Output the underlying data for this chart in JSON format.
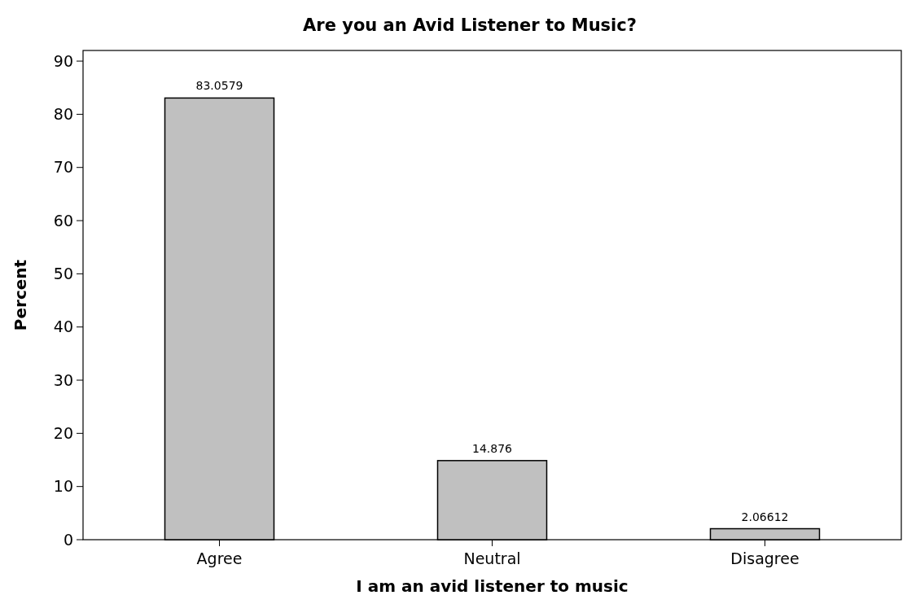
{
  "chart_data": {
    "type": "bar",
    "title": "Are you an Avid Listener to Music?",
    "xlabel": "I am an avid listener to music",
    "ylabel": "Percent",
    "categories": [
      "Agree",
      "Neutral",
      "Disagree"
    ],
    "values": [
      83.0579,
      14.876,
      2.06612
    ],
    "color": "#c0c0c0",
    "ylim": [
      0,
      92
    ],
    "yticks": [
      0,
      10,
      20,
      30,
      40,
      50,
      60,
      70,
      80,
      90
    ],
    "data_labels": true,
    "grid": false
  }
}
